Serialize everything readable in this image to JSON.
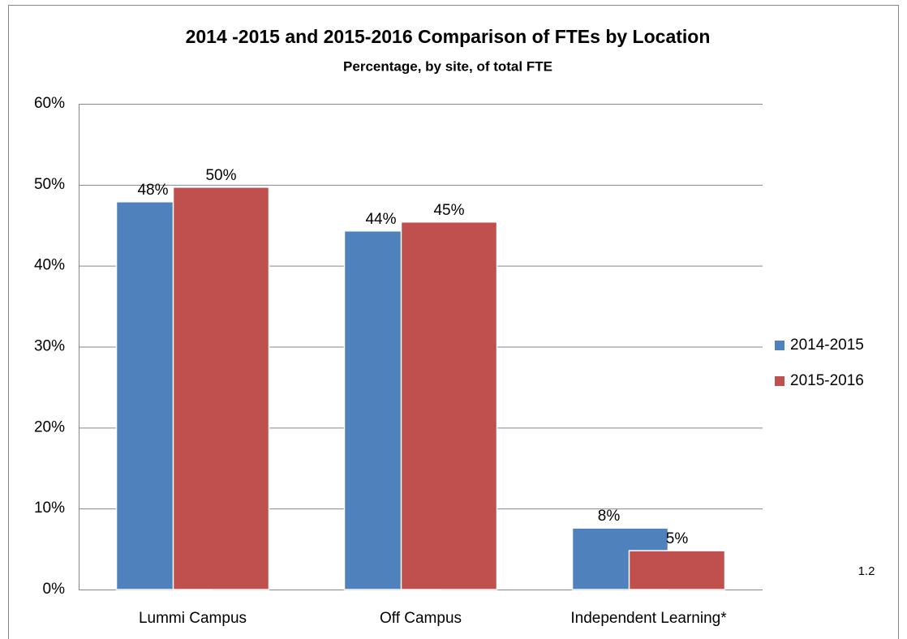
{
  "chart_data": {
    "type": "bar",
    "title": "2014 -2015 and 2015-2016 Comparison of FTEs by Location",
    "subtitle": "Percentage, by site, of total FTE",
    "annotation": "1.2",
    "categories": [
      "Lummi Campus",
      "Off Campus",
      "Independent Learning*"
    ],
    "series": [
      {
        "name": "2014-2015",
        "color": "#4f81bd",
        "values": [
          47.9,
          44.3,
          7.6
        ],
        "value_labels": [
          "48%",
          "44%",
          "8%"
        ]
      },
      {
        "name": "2015-2016",
        "color": "#c0504d",
        "values": [
          49.7,
          45.4,
          4.8
        ],
        "value_labels": [
          "50%",
          "45%",
          "5%"
        ]
      }
    ],
    "ylim": [
      0,
      60
    ],
    "yticks": [
      {
        "value": 0,
        "label": "0%"
      },
      {
        "value": 10,
        "label": "10%"
      },
      {
        "value": 20,
        "label": "20%"
      },
      {
        "value": 30,
        "label": "30%"
      },
      {
        "value": 40,
        "label": "40%"
      },
      {
        "value": 50,
        "label": "50%"
      },
      {
        "value": 60,
        "label": "60%"
      }
    ],
    "grid": true,
    "legend": "right"
  }
}
